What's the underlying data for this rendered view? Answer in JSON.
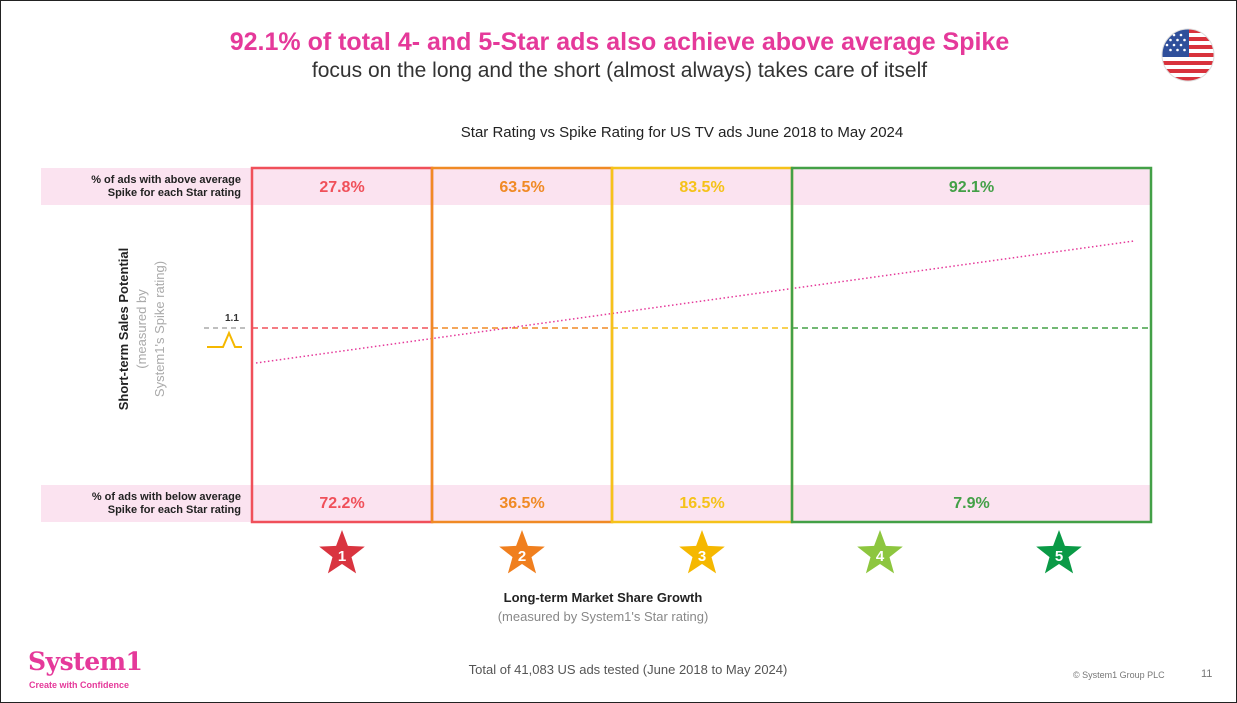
{
  "header": {
    "title": "92.1% of total 4- and 5-Star ads also achieve above average Spike",
    "subtitle": "focus on the long and the short (almost always) takes care of itself",
    "flag_icon": "us-flag-icon"
  },
  "chart_data": {
    "type": "line",
    "title": "Star Rating vs Spike Rating for US TV ads June 2018 to May 2024",
    "row_labels": {
      "above": [
        "% of ads with above average",
        "Spike for each Star rating"
      ],
      "below": [
        "% of ads with below average",
        "Spike for each Star rating"
      ]
    },
    "y_axis": {
      "label": "Short-term Sales Potential",
      "sublabel": [
        "(measured by",
        "System1's Spike rating)"
      ],
      "reference_value": "1.1"
    },
    "x_axis": {
      "label": "Long-term Market Share Growth",
      "sublabel": "(measured by System1's Star rating)"
    },
    "groups": [
      {
        "stars": [
          "1"
        ],
        "above": "27.8%",
        "below": "72.2%",
        "color": "#f0505a"
      },
      {
        "stars": [
          "2"
        ],
        "above": "63.5%",
        "below": "36.5%",
        "color": "#f08a25"
      },
      {
        "stars": [
          "3"
        ],
        "above": "83.5%",
        "below": "16.5%",
        "color": "#f5c21a"
      },
      {
        "stars": [
          "4",
          "5"
        ],
        "above": "92.1%",
        "below": "7.9%",
        "color": "#43a047"
      }
    ],
    "star_colors": [
      "#d9343f",
      "#f07f1e",
      "#f5b800",
      "#8dc63f",
      "#0a9a46"
    ],
    "star_labels": [
      "1",
      "2",
      "3",
      "4",
      "5"
    ],
    "colors": {
      "accent": "#e5399a",
      "band": "#fbe3f0"
    }
  },
  "footer": {
    "logo": "System1",
    "tagline": "Create with Confidence",
    "total": "Total of 41,083 US ads tested (June 2018 to May 2024)",
    "copyright": "© System1 Group PLC",
    "page": "11"
  }
}
